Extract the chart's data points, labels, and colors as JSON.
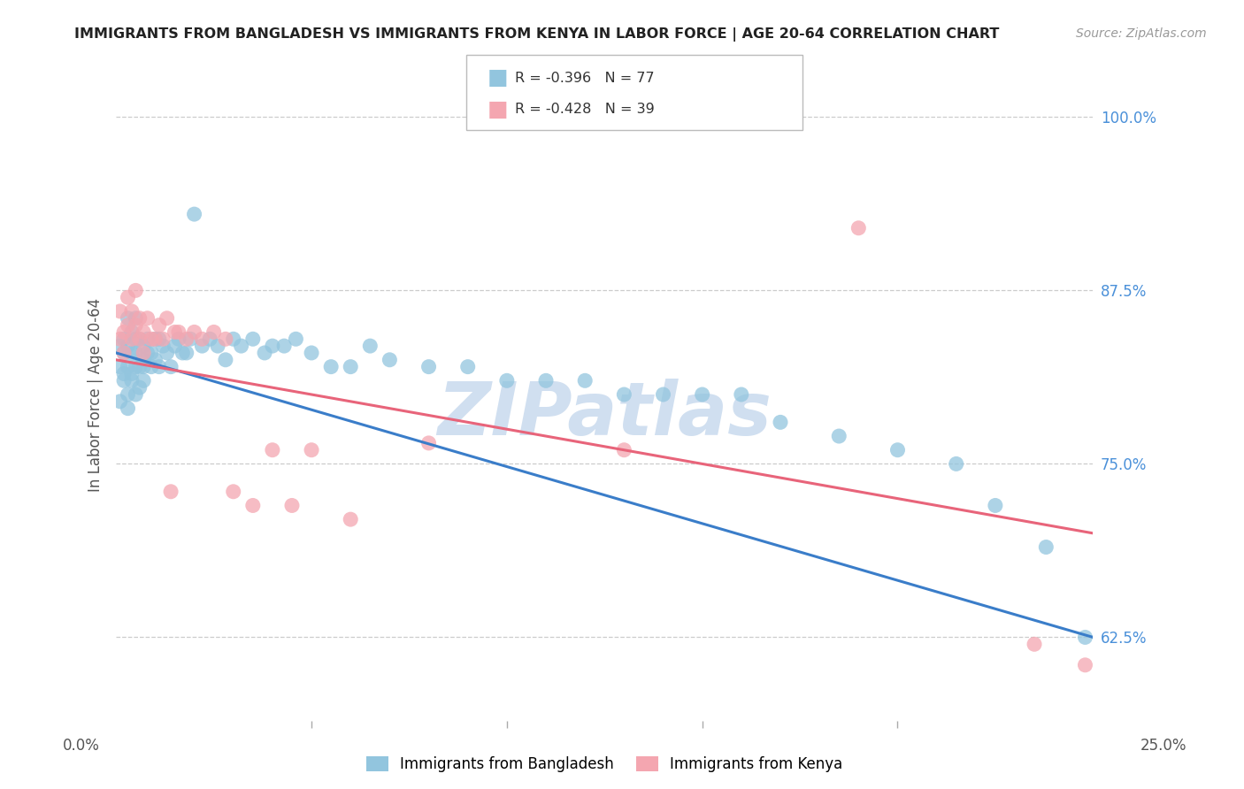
{
  "title": "IMMIGRANTS FROM BANGLADESH VS IMMIGRANTS FROM KENYA IN LABOR FORCE | AGE 20-64 CORRELATION CHART",
  "source": "Source: ZipAtlas.com",
  "ylabel": "In Labor Force | Age 20-64",
  "ytick_labels": [
    "100.0%",
    "87.5%",
    "75.0%",
    "62.5%"
  ],
  "ytick_values": [
    1.0,
    0.875,
    0.75,
    0.625
  ],
  "xlim": [
    0.0,
    0.25
  ],
  "ylim": [
    0.565,
    1.035
  ],
  "legend1_label": "Immigrants from Bangladesh",
  "legend2_label": "Immigrants from Kenya",
  "r_bangladesh": -0.396,
  "n_bangladesh": 77,
  "r_kenya": -0.428,
  "n_kenya": 39,
  "color_bangladesh": "#92c5de",
  "color_kenya": "#f4a6b0",
  "line_color_bangladesh": "#3a7dc9",
  "line_color_kenya": "#e8647a",
  "background_color": "#ffffff",
  "watermark": "ZIPatlas",
  "watermark_color": "#d0dff0",
  "scatter_bangladesh_x": [
    0.001,
    0.001,
    0.001,
    0.002,
    0.002,
    0.002,
    0.002,
    0.003,
    0.003,
    0.003,
    0.003,
    0.003,
    0.004,
    0.004,
    0.004,
    0.004,
    0.005,
    0.005,
    0.005,
    0.005,
    0.005,
    0.006,
    0.006,
    0.006,
    0.007,
    0.007,
    0.007,
    0.007,
    0.008,
    0.008,
    0.009,
    0.009,
    0.01,
    0.01,
    0.011,
    0.011,
    0.012,
    0.013,
    0.014,
    0.015,
    0.016,
    0.017,
    0.018,
    0.019,
    0.02,
    0.022,
    0.024,
    0.026,
    0.028,
    0.03,
    0.032,
    0.035,
    0.038,
    0.04,
    0.043,
    0.046,
    0.05,
    0.055,
    0.06,
    0.065,
    0.07,
    0.08,
    0.09,
    0.1,
    0.11,
    0.12,
    0.13,
    0.14,
    0.15,
    0.16,
    0.17,
    0.185,
    0.2,
    0.215,
    0.225,
    0.238,
    0.248
  ],
  "scatter_bangladesh_y": [
    0.82,
    0.795,
    0.835,
    0.81,
    0.83,
    0.84,
    0.815,
    0.79,
    0.82,
    0.835,
    0.855,
    0.8,
    0.83,
    0.815,
    0.845,
    0.81,
    0.8,
    0.82,
    0.84,
    0.83,
    0.855,
    0.805,
    0.82,
    0.84,
    0.825,
    0.81,
    0.835,
    0.82,
    0.84,
    0.83,
    0.83,
    0.82,
    0.84,
    0.825,
    0.84,
    0.82,
    0.835,
    0.83,
    0.82,
    0.835,
    0.84,
    0.83,
    0.83,
    0.84,
    0.93,
    0.835,
    0.84,
    0.835,
    0.825,
    0.84,
    0.835,
    0.84,
    0.83,
    0.835,
    0.835,
    0.84,
    0.83,
    0.82,
    0.82,
    0.835,
    0.825,
    0.82,
    0.82,
    0.81,
    0.81,
    0.81,
    0.8,
    0.8,
    0.8,
    0.8,
    0.78,
    0.77,
    0.76,
    0.75,
    0.72,
    0.69,
    0.625
  ],
  "scatter_kenya_x": [
    0.001,
    0.001,
    0.002,
    0.002,
    0.003,
    0.003,
    0.004,
    0.004,
    0.005,
    0.005,
    0.006,
    0.006,
    0.007,
    0.007,
    0.008,
    0.009,
    0.01,
    0.011,
    0.012,
    0.013,
    0.014,
    0.015,
    0.016,
    0.018,
    0.02,
    0.022,
    0.025,
    0.028,
    0.03,
    0.035,
    0.04,
    0.045,
    0.05,
    0.06,
    0.08,
    0.13,
    0.19,
    0.235,
    0.248
  ],
  "scatter_kenya_y": [
    0.84,
    0.86,
    0.845,
    0.83,
    0.87,
    0.85,
    0.84,
    0.86,
    0.85,
    0.875,
    0.84,
    0.855,
    0.83,
    0.845,
    0.855,
    0.84,
    0.84,
    0.85,
    0.84,
    0.855,
    0.73,
    0.845,
    0.845,
    0.84,
    0.845,
    0.84,
    0.845,
    0.84,
    0.73,
    0.72,
    0.76,
    0.72,
    0.76,
    0.71,
    0.765,
    0.76,
    0.92,
    0.62,
    0.605
  ],
  "line_bangladesh_x0": 0.0,
  "line_bangladesh_x1": 0.25,
  "line_bangladesh_y0": 0.83,
  "line_bangladesh_y1": 0.625,
  "line_kenya_x0": 0.0,
  "line_kenya_x1": 0.25,
  "line_kenya_y0": 0.825,
  "line_kenya_y1": 0.7
}
